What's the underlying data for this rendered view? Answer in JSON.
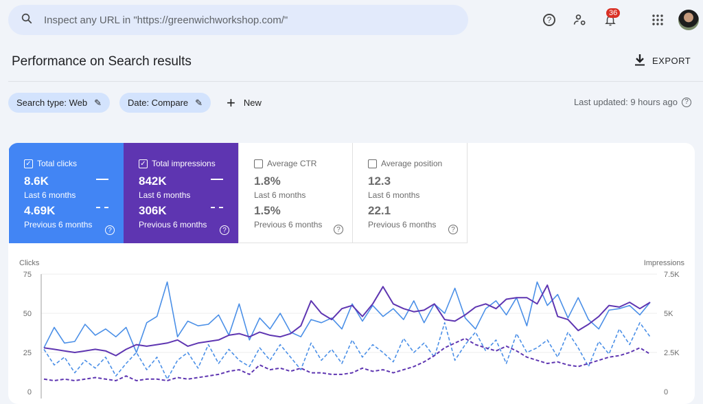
{
  "search": {
    "placeholder": "Inspect any URL in \"https://greenwichworkshop.com/\"",
    "icon": "search-icon"
  },
  "topbar": {
    "notifications": "36"
  },
  "page": {
    "title": "Performance on Search results",
    "export": "EXPORT"
  },
  "filters": {
    "search_type": "Search type: Web",
    "date": "Date: Compare",
    "new": "New",
    "last_updated": "Last updated: 9 hours ago"
  },
  "metrics": [
    {
      "label": "Total clicks",
      "checked": true,
      "current": "8.6K",
      "current_label": "Last 6 months",
      "previous": "4.69K",
      "previous_label": "Previous 6 months",
      "color": "#4285f4"
    },
    {
      "label": "Total impressions",
      "checked": true,
      "current": "842K",
      "current_label": "Last 6 months",
      "previous": "306K",
      "previous_label": "Previous 6 months",
      "color": "#5e35b1"
    },
    {
      "label": "Average CTR",
      "checked": false,
      "current": "1.8%",
      "current_label": "Last 6 months",
      "previous": "1.5%",
      "previous_label": "Previous 6 months"
    },
    {
      "label": "Average position",
      "checked": false,
      "current": "12.3",
      "current_label": "Last 6 months",
      "previous": "22.1",
      "previous_label": "Previous 6 months"
    }
  ],
  "chart_data": {
    "type": "line",
    "left_axis": {
      "label": "Clicks",
      "ticks": [
        "0",
        "25",
        "50",
        "75"
      ],
      "range": [
        0,
        75
      ]
    },
    "right_axis": {
      "label": "Impressions",
      "ticks": [
        "0",
        "2.5K",
        "5K",
        "7.5K"
      ],
      "range": [
        0,
        7500
      ]
    },
    "grid": true,
    "series": [
      {
        "metric": "clicks",
        "period": "current",
        "axis": "left",
        "style": "solid",
        "color": "#4a8fe7",
        "values": [
          28,
          41,
          31,
          32,
          43,
          36,
          40,
          35,
          41,
          25,
          44,
          48,
          70,
          35,
          45,
          42,
          43,
          49,
          36,
          56,
          33,
          47,
          40,
          50,
          38,
          35,
          46,
          44,
          47,
          40,
          56,
          45,
          55,
          48,
          53,
          46,
          58,
          44,
          56,
          50,
          66,
          47,
          40,
          53,
          58,
          49,
          60,
          42,
          70,
          55,
          62,
          47,
          60,
          46,
          40,
          52,
          53,
          55,
          49,
          57
        ]
      },
      {
        "metric": "impressions",
        "period": "current",
        "axis": "right",
        "style": "solid",
        "color": "#5e35b1",
        "values": [
          2800,
          2700,
          2600,
          2500,
          2600,
          2700,
          2600,
          2300,
          2700,
          3000,
          2900,
          3000,
          3100,
          3300,
          2900,
          3100,
          3200,
          3300,
          3600,
          3700,
          3500,
          3800,
          3600,
          3500,
          3700,
          4200,
          5800,
          5000,
          4600,
          5300,
          5500,
          4800,
          5600,
          6700,
          5600,
          5300,
          5100,
          5200,
          5600,
          4600,
          4500,
          4900,
          5400,
          5600,
          5300,
          5900,
          6000,
          6000,
          5600,
          6800,
          4800,
          4600,
          3900,
          4300,
          4800,
          5500,
          5400,
          5700,
          5300,
          5700
        ]
      },
      {
        "metric": "clicks",
        "period": "previous",
        "axis": "left",
        "style": "dashed",
        "color": "#4a8fe7",
        "values": [
          27,
          17,
          22,
          12,
          20,
          15,
          22,
          10,
          18,
          25,
          14,
          22,
          8,
          20,
          25,
          15,
          30,
          18,
          27,
          20,
          16,
          28,
          20,
          30,
          22,
          14,
          31,
          20,
          27,
          18,
          33,
          22,
          30,
          25,
          19,
          34,
          25,
          31,
          22,
          44,
          20,
          30,
          38,
          26,
          33,
          18,
          37,
          25,
          28,
          33,
          22,
          38,
          28,
          16,
          32,
          24,
          40,
          30,
          44,
          35
        ]
      },
      {
        "metric": "impressions",
        "period": "previous",
        "axis": "right",
        "style": "dashed",
        "color": "#5e35b1",
        "values": [
          800,
          700,
          800,
          700,
          800,
          900,
          800,
          700,
          1000,
          700,
          800,
          800,
          700,
          900,
          800,
          900,
          1000,
          1100,
          1300,
          1400,
          1100,
          1700,
          1400,
          1500,
          1300,
          1500,
          1200,
          1200,
          1100,
          1100,
          1200,
          1500,
          1300,
          1400,
          1200,
          1400,
          1600,
          1900,
          2300,
          2800,
          3100,
          3400,
          3000,
          2800,
          2600,
          2900,
          2600,
          2200,
          2000,
          1800,
          1900,
          1700,
          1600,
          1800,
          2000,
          2200,
          2300,
          2500,
          2800,
          2400
        ]
      }
    ]
  }
}
